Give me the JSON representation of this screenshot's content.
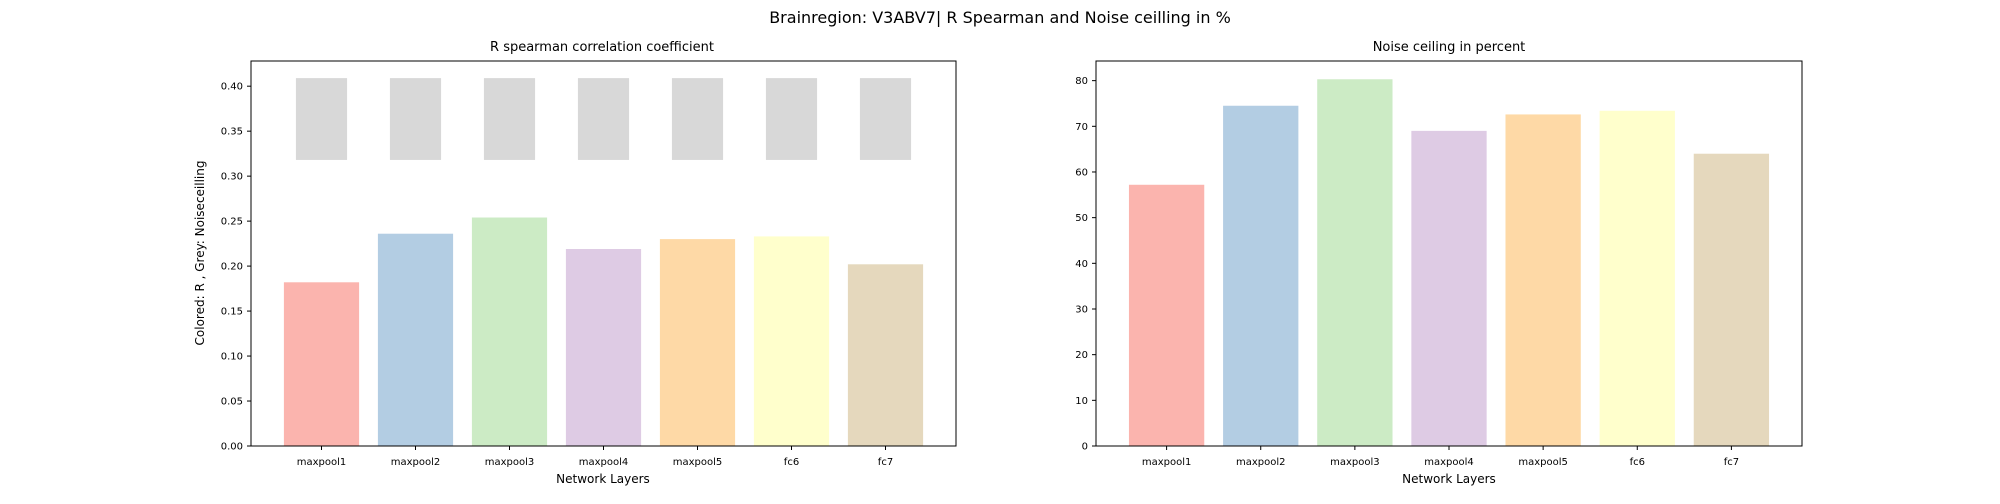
{
  "figure": {
    "suptitle": "Brainregion: V3ABV7| R Spearman and Noise ceilling in %"
  },
  "colors": [
    "#fbb4ae",
    "#b3cde3",
    "#ccebc5",
    "#decbe4",
    "#fed9a6",
    "#ffffcc",
    "#e5d8bd"
  ],
  "noise_band_color": "#d8d8d8",
  "chart_data": [
    {
      "type": "bar",
      "title": "R spearman correlation coefficient",
      "xlabel": "Network Layers",
      "ylabel": "Colored: R , Grey: Noiseceilling",
      "categories": [
        "maxpool1",
        "maxpool2",
        "maxpool3",
        "maxpool4",
        "maxpool5",
        "fc6",
        "fc7"
      ],
      "values": [
        0.182,
        0.236,
        0.254,
        0.219,
        0.23,
        0.233,
        0.202
      ],
      "noise_ceiling": {
        "lower": 0.318,
        "upper": 0.409
      },
      "ylim": [
        0,
        0.428
      ],
      "yticks": [
        "0.00",
        "0.05",
        "0.10",
        "0.15",
        "0.20",
        "0.25",
        "0.30",
        "0.35",
        "0.40"
      ],
      "grid": false
    },
    {
      "type": "bar",
      "title": "Noise ceiling in percent",
      "xlabel": "Network Layers",
      "ylabel": "",
      "categories": [
        "maxpool1",
        "maxpool2",
        "maxpool3",
        "maxpool4",
        "maxpool5",
        "fc6",
        "fc7"
      ],
      "values": [
        57.2,
        74.5,
        80.3,
        69.0,
        72.6,
        73.4,
        64.0
      ],
      "ylim": [
        0,
        84.3
      ],
      "yticks": [
        "0",
        "10",
        "20",
        "30",
        "40",
        "50",
        "60",
        "70",
        "80"
      ],
      "grid": false
    }
  ]
}
